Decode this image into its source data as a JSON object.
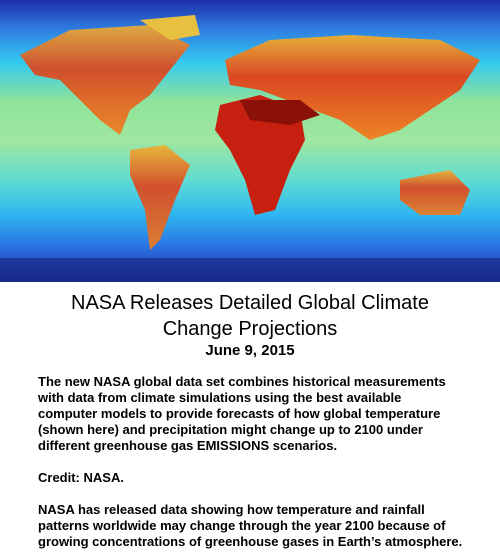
{
  "article": {
    "title_lines": [
      "NASA Releases Detailed Global Climate",
      "Change Projections"
    ],
    "date": "June 9, 2015",
    "caption_lines": [
      "The new NASA global data set combines historical measurements",
      "with data from climate simulations using the best available",
      "computer models to provide forecasts of how global temperature",
      "(shown here) and precipitation might change up to 2100 under",
      "different greenhouse gas EMISSIONS scenarios."
    ],
    "credit": "Credit: NASA.",
    "body_lines": [
      "NASA has released data showing how temperature and rainfall",
      "patterns worldwide may change through the year 2100 because of",
      "growing concentrations of greenhouse gases in Earth’s atmosphere."
    ]
  }
}
